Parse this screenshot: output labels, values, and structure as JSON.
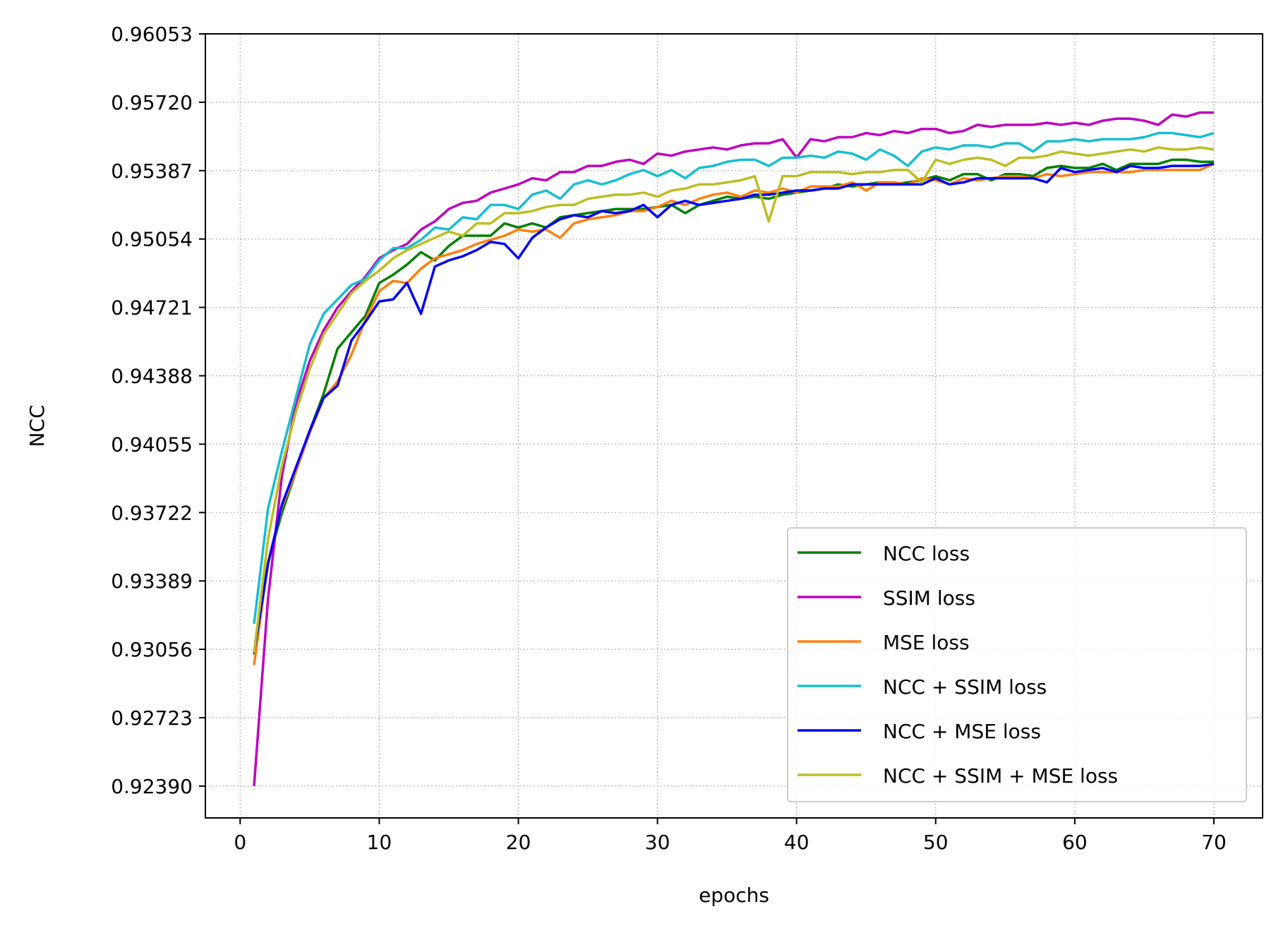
{
  "chart_data": {
    "type": "line",
    "title": "",
    "xlabel": "epochs",
    "ylabel": "NCC",
    "xlim": [
      -2.5,
      73.5
    ],
    "ylim": [
      0.92235,
      0.96053
    ],
    "xticks": [
      0,
      10,
      20,
      30,
      40,
      50,
      60,
      70
    ],
    "xtick_labels": [
      "0",
      "10",
      "20",
      "30",
      "40",
      "50",
      "60",
      "70"
    ],
    "yticks": [
      0.9239,
      0.92723,
      0.93056,
      0.93389,
      0.93722,
      0.94055,
      0.94388,
      0.94721,
      0.95054,
      0.95387,
      0.9572,
      0.96053
    ],
    "ytick_labels": [
      "0.92390",
      "0.92723",
      "0.93056",
      "0.93389",
      "0.93722",
      "0.94055",
      "0.94388",
      "0.94721",
      "0.95054",
      "0.95387",
      "0.95720",
      "0.96053"
    ],
    "grid": true,
    "legend_position": "lower-right",
    "x": [
      1,
      2,
      3,
      4,
      5,
      6,
      7,
      8,
      9,
      10,
      11,
      12,
      13,
      14,
      15,
      16,
      17,
      18,
      19,
      20,
      21,
      22,
      23,
      24,
      25,
      26,
      27,
      28,
      29,
      30,
      31,
      32,
      33,
      34,
      35,
      36,
      37,
      38,
      39,
      40,
      41,
      42,
      43,
      44,
      45,
      46,
      47,
      48,
      49,
      50,
      51,
      52,
      53,
      54,
      55,
      56,
      57,
      58,
      59,
      60,
      61,
      62,
      63,
      64,
      65,
      66,
      67,
      68,
      69,
      70
    ],
    "series": [
      {
        "name": "NCC loss",
        "color": "#008000",
        "values": [
          0.9303,
          0.9348,
          0.9372,
          0.9392,
          0.9412,
          0.943,
          0.9452,
          0.946,
          0.9468,
          0.9484,
          0.9488,
          0.9493,
          0.9499,
          0.9495,
          0.9502,
          0.9507,
          0.9507,
          0.9507,
          0.9513,
          0.9511,
          0.9513,
          0.9511,
          0.9516,
          0.9517,
          0.9518,
          0.9519,
          0.952,
          0.952,
          0.952,
          0.9521,
          0.9522,
          0.9518,
          0.9522,
          0.9524,
          0.9526,
          0.9525,
          0.9526,
          0.9525,
          0.9527,
          0.9528,
          0.9529,
          0.953,
          0.9532,
          0.9531,
          0.9532,
          0.9533,
          0.9532,
          0.9533,
          0.9534,
          0.9536,
          0.9534,
          0.9537,
          0.9537,
          0.9534,
          0.9537,
          0.9537,
          0.9536,
          0.954,
          0.9541,
          0.954,
          0.954,
          0.9542,
          0.9539,
          0.9542,
          0.9542,
          0.9542,
          0.9544,
          0.9544,
          0.9543,
          0.9543
        ]
      },
      {
        "name": "SSIM loss",
        "color": "#bf00bf",
        "values": [
          0.9239,
          0.933,
          0.939,
          0.9425,
          0.9446,
          0.9461,
          0.9472,
          0.948,
          0.9487,
          0.9496,
          0.95,
          0.9503,
          0.951,
          0.9514,
          0.952,
          0.9523,
          0.9524,
          0.9528,
          0.953,
          0.9532,
          0.9535,
          0.9534,
          0.9538,
          0.9538,
          0.9541,
          0.9541,
          0.9543,
          0.9544,
          0.9542,
          0.9547,
          0.9546,
          0.9548,
          0.9549,
          0.955,
          0.9549,
          0.9551,
          0.9552,
          0.9552,
          0.9554,
          0.9545,
          0.9554,
          0.9553,
          0.9555,
          0.9555,
          0.9557,
          0.9556,
          0.9558,
          0.9557,
          0.9559,
          0.9559,
          0.9557,
          0.9558,
          0.9561,
          0.956,
          0.9561,
          0.9561,
          0.9561,
          0.9562,
          0.9561,
          0.9562,
          0.9561,
          0.9563,
          0.9564,
          0.9564,
          0.9563,
          0.9561,
          0.9566,
          0.9565,
          0.9567,
          0.9567
        ]
      },
      {
        "name": "MSE loss",
        "color": "#ff7f0e",
        "values": [
          0.9298,
          0.9348,
          0.9375,
          0.9392,
          0.9411,
          0.9428,
          0.9436,
          0.9449,
          0.9466,
          0.948,
          0.9485,
          0.9484,
          0.9491,
          0.9496,
          0.9498,
          0.95,
          0.9503,
          0.9505,
          0.9507,
          0.951,
          0.9509,
          0.951,
          0.9506,
          0.9513,
          0.9515,
          0.9516,
          0.9517,
          0.9519,
          0.9519,
          0.9521,
          0.9524,
          0.9522,
          0.9525,
          0.9527,
          0.9528,
          0.9526,
          0.9529,
          0.9528,
          0.953,
          0.9528,
          0.9531,
          0.9531,
          0.9531,
          0.9533,
          0.9529,
          0.9533,
          0.9533,
          0.9532,
          0.9535,
          0.9534,
          0.9532,
          0.9535,
          0.9534,
          0.9535,
          0.9536,
          0.9536,
          0.9535,
          0.9537,
          0.9536,
          0.9537,
          0.9538,
          0.9538,
          0.9538,
          0.9538,
          0.9539,
          0.9539,
          0.9539,
          0.9539,
          0.9539,
          0.9542
        ]
      },
      {
        "name": "NCC + SSIM loss",
        "color": "#17becf",
        "values": [
          0.9318,
          0.9374,
          0.9402,
          0.9428,
          0.9454,
          0.9469,
          0.9476,
          0.9483,
          0.9486,
          0.9495,
          0.9501,
          0.9501,
          0.9505,
          0.9511,
          0.951,
          0.9516,
          0.9515,
          0.9522,
          0.9522,
          0.952,
          0.9527,
          0.9529,
          0.9525,
          0.9532,
          0.9534,
          0.9532,
          0.9534,
          0.9537,
          0.9539,
          0.9536,
          0.9539,
          0.9535,
          0.954,
          0.9541,
          0.9543,
          0.9544,
          0.9544,
          0.9541,
          0.9545,
          0.9545,
          0.9546,
          0.9545,
          0.9548,
          0.9547,
          0.9544,
          0.9549,
          0.9546,
          0.9541,
          0.9548,
          0.955,
          0.9549,
          0.9551,
          0.9551,
          0.955,
          0.9552,
          0.9552,
          0.9548,
          0.9553,
          0.9553,
          0.9554,
          0.9553,
          0.9554,
          0.9554,
          0.9554,
          0.9555,
          0.9557,
          0.9557,
          0.9556,
          0.9555,
          0.9557
        ]
      },
      {
        "name": "NCC + MSE loss",
        "color": "#0000ff",
        "values": [
          0.9304,
          0.9347,
          0.9376,
          0.9394,
          0.9412,
          0.9428,
          0.9434,
          0.9456,
          0.9465,
          0.9475,
          0.9476,
          0.9484,
          0.9469,
          0.9492,
          0.9495,
          0.9497,
          0.95,
          0.9504,
          0.9503,
          0.9496,
          0.9506,
          0.9511,
          0.9515,
          0.9517,
          0.9516,
          0.9519,
          0.9518,
          0.9519,
          0.9522,
          0.9516,
          0.9522,
          0.9524,
          0.9522,
          0.9523,
          0.9524,
          0.9525,
          0.9527,
          0.9527,
          0.9528,
          0.9529,
          0.9529,
          0.953,
          0.953,
          0.9532,
          0.9532,
          0.9532,
          0.9532,
          0.9532,
          0.9532,
          0.9535,
          0.9532,
          0.9533,
          0.9535,
          0.9535,
          0.9535,
          0.9535,
          0.9535,
          0.9533,
          0.954,
          0.9538,
          0.9539,
          0.954,
          0.9538,
          0.9541,
          0.954,
          0.954,
          0.9541,
          0.9541,
          0.9541,
          0.9542
        ]
      },
      {
        "name": "NCC + SSIM + MSE loss",
        "color": "#bcbd22",
        "values": [
          0.9304,
          0.9359,
          0.9395,
          0.9421,
          0.9442,
          0.9459,
          0.9469,
          0.9479,
          0.9485,
          0.949,
          0.9496,
          0.95,
          0.9503,
          0.9506,
          0.9509,
          0.9507,
          0.9513,
          0.9513,
          0.9518,
          0.9518,
          0.9519,
          0.9521,
          0.9522,
          0.9522,
          0.9525,
          0.9526,
          0.9527,
          0.9527,
          0.9528,
          0.9526,
          0.9529,
          0.953,
          0.9532,
          0.9532,
          0.9533,
          0.9534,
          0.9536,
          0.9514,
          0.9536,
          0.9536,
          0.9538,
          0.9538,
          0.9538,
          0.9537,
          0.9538,
          0.9538,
          0.9539,
          0.9539,
          0.9533,
          0.9544,
          0.9542,
          0.9544,
          0.9545,
          0.9544,
          0.9541,
          0.9545,
          0.9545,
          0.9546,
          0.9548,
          0.9547,
          0.9546,
          0.9547,
          0.9548,
          0.9549,
          0.9548,
          0.955,
          0.9549,
          0.9549,
          0.955,
          0.9549
        ]
      }
    ]
  }
}
